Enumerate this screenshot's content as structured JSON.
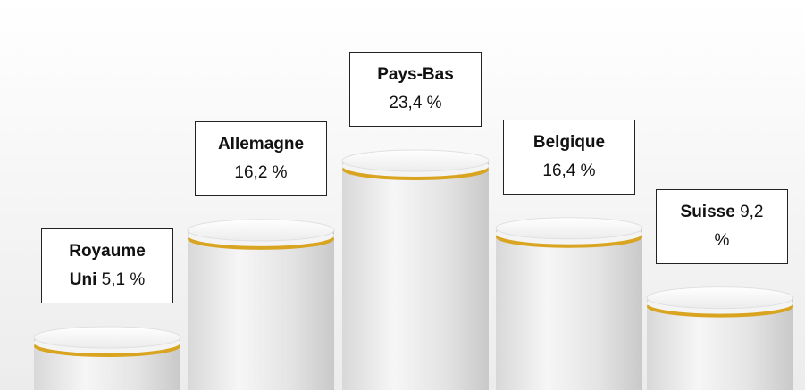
{
  "chart_data": {
    "type": "podium",
    "categories": [
      "Royaume Uni",
      "Allemagne",
      "Pays-Bas",
      "Belgique",
      "Suisse"
    ],
    "values": [
      5.1,
      16.2,
      23.4,
      16.4,
      9.2
    ],
    "value_labels": [
      "5,1 %",
      "16,2 %",
      "23,4 %",
      "16,4 %",
      "9,2 %"
    ],
    "color": "#d9a520"
  }
}
